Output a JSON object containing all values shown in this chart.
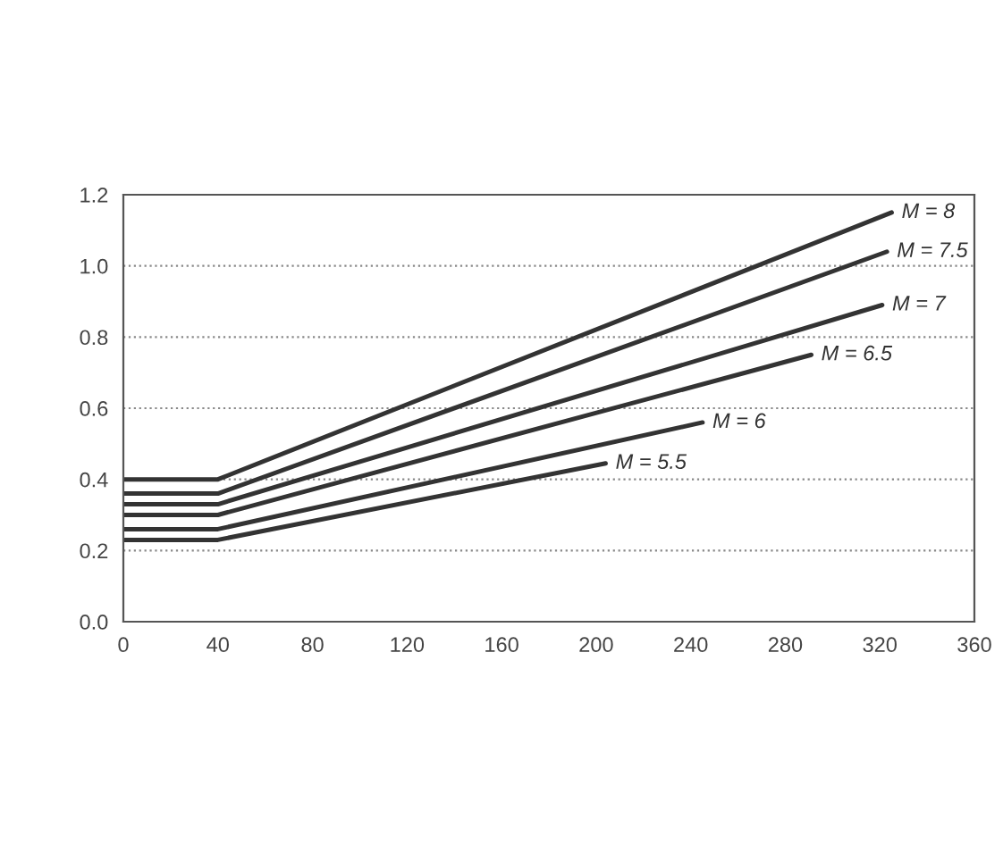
{
  "chart_data": {
    "type": "line",
    "xlim": [
      0,
      360
    ],
    "ylim": [
      0,
      1.2
    ],
    "xticks": [
      0,
      40,
      80,
      120,
      160,
      200,
      240,
      280,
      320,
      360
    ],
    "yticks": [
      {
        "value": 0,
        "label": "0.0"
      },
      0.2,
      0.4,
      0.6,
      0.8,
      {
        "value": 1.0,
        "label": "1.0"
      },
      1.2
    ],
    "grid": "y",
    "legend": false,
    "marker": "none",
    "line_style": "solid",
    "series": [
      {
        "color": "#333333",
        "x": [
          0,
          40,
          325
        ],
        "values": [
          0.4,
          0.4,
          1.15
        ]
      },
      {
        "color": "#333333",
        "x": [
          0,
          40,
          323
        ],
        "values": [
          0.36,
          0.36,
          1.04
        ]
      },
      {
        "color": "#333333",
        "x": [
          0,
          40,
          321
        ],
        "values": [
          0.33,
          0.33,
          0.89
        ]
      },
      {
        "color": "#333333",
        "x": [
          0,
          40,
          291
        ],
        "values": [
          0.3,
          0.3,
          0.75
        ]
      },
      {
        "color": "#333333",
        "x": [
          0,
          40,
          245
        ],
        "values": [
          0.26,
          0.26,
          0.56
        ]
      },
      {
        "color": "#333333",
        "x": [
          0,
          40,
          204
        ],
        "values": [
          0.23,
          0.23,
          0.445
        ]
      }
    ],
    "annotations": [
      {
        "text": "M = 8",
        "x": 325,
        "y": 1.15
      },
      {
        "text": "M = 7.5",
        "x": 323,
        "y": 1.04
      },
      {
        "text": "M = 7",
        "x": 321,
        "y": 0.89
      },
      {
        "text": "M = 6.5",
        "x": 291,
        "y": 0.75
      },
      {
        "text": "M = 6",
        "x": 245,
        "y": 0.56
      },
      {
        "text": "M = 5.5",
        "x": 204,
        "y": 0.445
      }
    ]
  }
}
